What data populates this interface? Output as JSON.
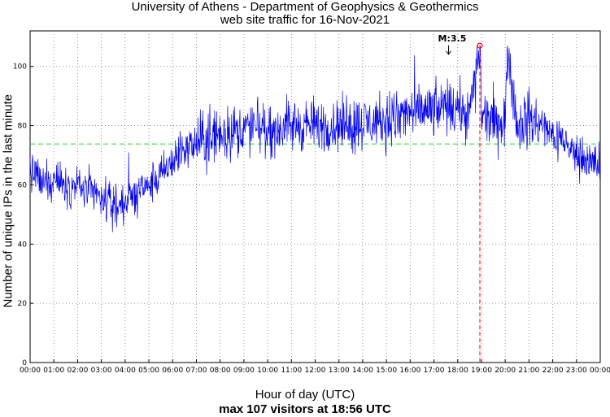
{
  "chart_data": {
    "type": "line",
    "title": [
      "University of Athens - Department of Geophysics & Geothermics",
      "web site traffic for 16-Nov-2021"
    ],
    "xlabel": "Hour of day (UTC)",
    "subtitle": "max 107 visitors at 18:56 UTC",
    "ylabel": "Number of unique IPs in the last minute",
    "xlim": [
      0,
      24
    ],
    "ylim": [
      0,
      112
    ],
    "x_ticks": [
      "00:00",
      "01:00",
      "02:00",
      "03:00",
      "04:00",
      "05:00",
      "06:00",
      "07:00",
      "08:00",
      "09:00",
      "10:00",
      "11:00",
      "12:00",
      "13:00",
      "14:00",
      "15:00",
      "16:00",
      "17:00",
      "18:00",
      "19:00",
      "20:00",
      "21:00",
      "22:00",
      "23:00",
      "00:00"
    ],
    "y_ticks": [
      0,
      20,
      40,
      60,
      80,
      100
    ],
    "grid": true,
    "series": [
      {
        "color": "#0000ee",
        "x": [
          0,
          0.5,
          1,
          1.5,
          2,
          2.5,
          3,
          3.5,
          4,
          4.5,
          5,
          5.5,
          6,
          6.5,
          7,
          7.5,
          8,
          8.5,
          9,
          9.5,
          10,
          10.5,
          11,
          11.5,
          12,
          12.5,
          13,
          13.5,
          14,
          14.5,
          15,
          15.5,
          16,
          16.5,
          17,
          17.5,
          18,
          18.5,
          18.933,
          19,
          19.5,
          20,
          20.08,
          20.5,
          21,
          21.5,
          22,
          22.5,
          23,
          23.5,
          24
        ],
        "y": [
          66,
          60,
          62,
          60,
          60,
          58,
          55,
          53,
          55,
          57,
          60,
          63,
          68,
          72,
          74,
          76,
          77,
          78,
          79,
          79,
          79,
          79,
          80,
          80,
          80,
          80,
          80,
          81,
          81,
          81,
          82,
          83,
          84,
          85,
          85,
          86,
          85,
          84,
          107,
          83,
          81,
          80,
          106,
          81,
          82,
          80,
          77,
          74,
          70,
          68,
          67
        ]
      }
    ],
    "mean_line": {
      "value": 73.8,
      "color": "#22dd22"
    },
    "max_marker": {
      "x": 18.933,
      "y": 107,
      "color": "#ff0000"
    },
    "annotations": [
      {
        "text": "M:3.5",
        "x": 17.65,
        "y": 108.5
      }
    ]
  }
}
